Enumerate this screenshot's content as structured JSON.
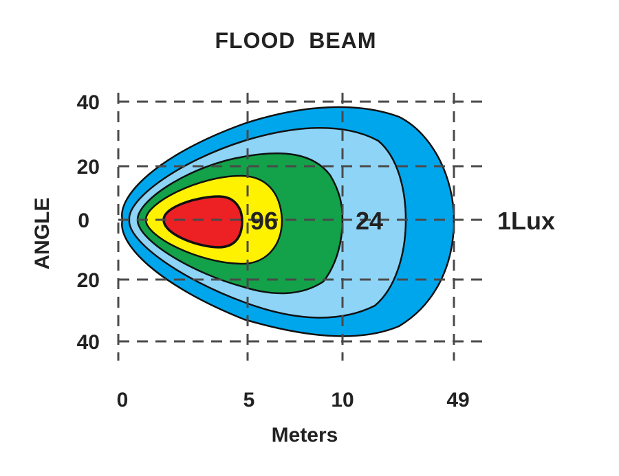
{
  "chart_data": {
    "type": "beam-pattern",
    "title": "FLOOD  BEAM",
    "xlabel": "Meters",
    "ylabel": "ANGLE",
    "x_ticks": [
      "0",
      "5",
      "10",
      "49"
    ],
    "y_ticks": [
      "40",
      "20",
      "0",
      "20",
      "40"
    ],
    "zone_labels": [
      "96",
      "24",
      "1Lux"
    ],
    "zone_colors": [
      "#ED2024",
      "#FFF200",
      "#13A14A",
      "#8DD4F6",
      "#00A6EC"
    ],
    "grid": true
  }
}
